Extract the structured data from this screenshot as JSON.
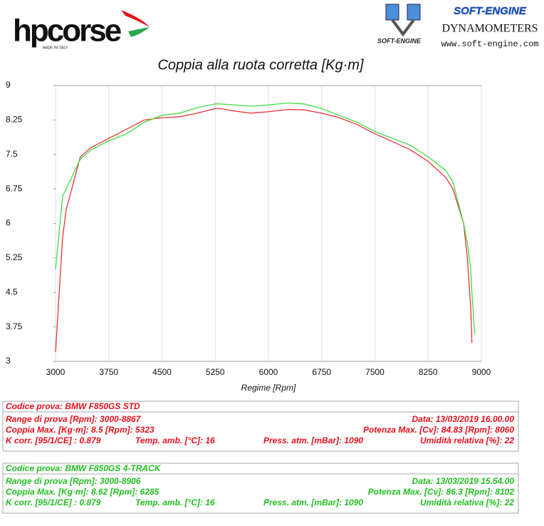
{
  "header": {
    "brand": "hpcorse",
    "brand_tagline": "MADE IN ITALY",
    "lab_logo": "SOFT-ENGINE",
    "lab_name": "SOFT-ENGINE",
    "lab_type": "DYNAMOMETERS",
    "lab_site": "www.soft-engine.com"
  },
  "chart_data": {
    "type": "line",
    "title": "Coppia alla ruota corretta [Kg·m]",
    "x_label": "Regime [Rpm]",
    "x": [
      3000,
      3100,
      3150,
      3350,
      3500,
      3750,
      4000,
      4250,
      4500,
      4750,
      5000,
      5250,
      5323,
      5500,
      5750,
      6000,
      6285,
      6500,
      6750,
      7000,
      7250,
      7500,
      7750,
      8000,
      8250,
      8500,
      8600,
      8750,
      8800,
      8850,
      8867,
      8906
    ],
    "series": [
      {
        "name": "BMW F850GS STD",
        "color": "#e8333c",
        "values": [
          3.2,
          5.7,
          6.3,
          7.45,
          7.65,
          7.85,
          8.05,
          8.25,
          8.3,
          8.32,
          8.4,
          8.5,
          8.5,
          8.45,
          8.4,
          8.43,
          8.48,
          8.47,
          8.4,
          8.3,
          8.15,
          7.95,
          7.78,
          7.6,
          7.35,
          7.0,
          6.75,
          6.0,
          5.3,
          4.2,
          3.4,
          null
        ]
      },
      {
        "name": "BMW F850GS 4-TRACK",
        "color": "#3fdc3f",
        "values": [
          5.0,
          6.6,
          6.75,
          7.4,
          7.6,
          7.8,
          7.95,
          8.2,
          8.35,
          8.4,
          8.52,
          8.6,
          8.6,
          8.58,
          8.55,
          8.58,
          8.62,
          8.6,
          8.5,
          8.35,
          8.2,
          8.0,
          7.85,
          7.7,
          7.45,
          7.15,
          6.9,
          6.0,
          5.6,
          5.0,
          4.5,
          3.6
        ]
      }
    ],
    "xlim": [
      3000,
      9000
    ],
    "xticks": [
      3000,
      3750,
      4500,
      5250,
      6000,
      6750,
      7500,
      8250,
      9000
    ],
    "ylim": [
      3,
      9
    ],
    "yticks": [
      3,
      3.75,
      4.5,
      5.25,
      6,
      6.75,
      7.5,
      8.25,
      9
    ],
    "xgrid": true
  },
  "tests": [
    {
      "color": "#e8101c",
      "rows": [
        [
          "Codice prova: BMW F850GS STD"
        ],
        [
          "Range di prova [Rpm]: 3000-8867",
          "Data: 13/03/2019   16.00.00"
        ],
        [
          "Coppia Max. [Kg·m]: 8.5  [Rpm]: 5323",
          "Potenza Max. [Cv]: 84.83  [Rpm]: 8060"
        ],
        [
          "K corr. [95/1/CE] : 0.879",
          "Temp. amb. [°C]: 16",
          "Press. atm. [mBar]: 1090",
          "Umidità relativa [%]: 22"
        ]
      ]
    },
    {
      "color": "#22c022",
      "rows": [
        [
          "Codice prova: BMW F850GS 4-TRACK"
        ],
        [
          "Range di prova [Rpm]: 3000-8906",
          "Data: 13/03/2019   15.54.00"
        ],
        [
          "Coppia Max. [Kg·m]: 8.62  [Rpm]: 6285",
          "Potenza Max. [Cv]: 86.3  [Rpm]: 8102"
        ],
        [
          "K corr. [95/1/CE] : 0.879",
          "Temp. amb. [°C]: 16",
          "Press. atm. [mBar]: 1090",
          "Umidità relativa [%]: 22"
        ]
      ]
    }
  ]
}
